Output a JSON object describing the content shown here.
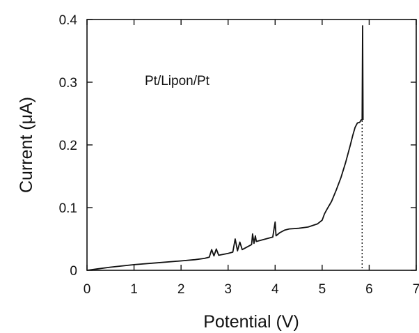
{
  "chart_data": {
    "type": "line",
    "title": "",
    "annotation": "Pt/Lipon/Pt",
    "xlabel": "Potential (V)",
    "ylabel": "Current (μA)",
    "xlim": [
      0,
      7
    ],
    "ylim": [
      0,
      0.4
    ],
    "xticks": [
      0,
      1,
      2,
      3,
      4,
      5,
      6,
      7
    ],
    "yticks": [
      0,
      0.1,
      0.2,
      0.3,
      0.4
    ],
    "ytick_labels": [
      "0",
      "0.1",
      "0.2",
      "0.3",
      "0.4"
    ],
    "grid": false,
    "legend": "none",
    "vertical_marker": {
      "x": 5.85,
      "style": "dotted"
    },
    "series": [
      {
        "values_x": [
          0.0,
          0.2,
          0.5,
          1.0,
          1.5,
          2.0,
          2.3,
          2.5,
          2.6,
          2.65,
          2.7,
          2.75,
          2.8,
          3.0,
          3.1,
          3.15,
          3.2,
          3.25,
          3.3,
          3.4,
          3.5,
          3.52,
          3.55,
          3.58,
          3.6,
          3.8,
          3.95,
          4.0,
          4.02,
          4.1,
          4.2,
          4.3,
          4.5,
          4.7,
          4.9,
          5.0,
          5.05,
          5.1,
          5.2,
          5.3,
          5.4,
          5.5,
          5.6,
          5.65,
          5.7,
          5.75,
          5.8,
          5.83,
          5.85,
          5.86,
          5.87
        ],
        "values_y": [
          0.0,
          0.002,
          0.005,
          0.009,
          0.012,
          0.015,
          0.017,
          0.019,
          0.021,
          0.033,
          0.023,
          0.034,
          0.024,
          0.027,
          0.029,
          0.05,
          0.031,
          0.045,
          0.033,
          0.037,
          0.041,
          0.058,
          0.043,
          0.055,
          0.046,
          0.05,
          0.053,
          0.077,
          0.055,
          0.06,
          0.064,
          0.066,
          0.067,
          0.069,
          0.074,
          0.08,
          0.09,
          0.097,
          0.11,
          0.128,
          0.148,
          0.172,
          0.2,
          0.215,
          0.228,
          0.235,
          0.236,
          0.24,
          0.24,
          0.39,
          0.24
        ]
      }
    ]
  }
}
